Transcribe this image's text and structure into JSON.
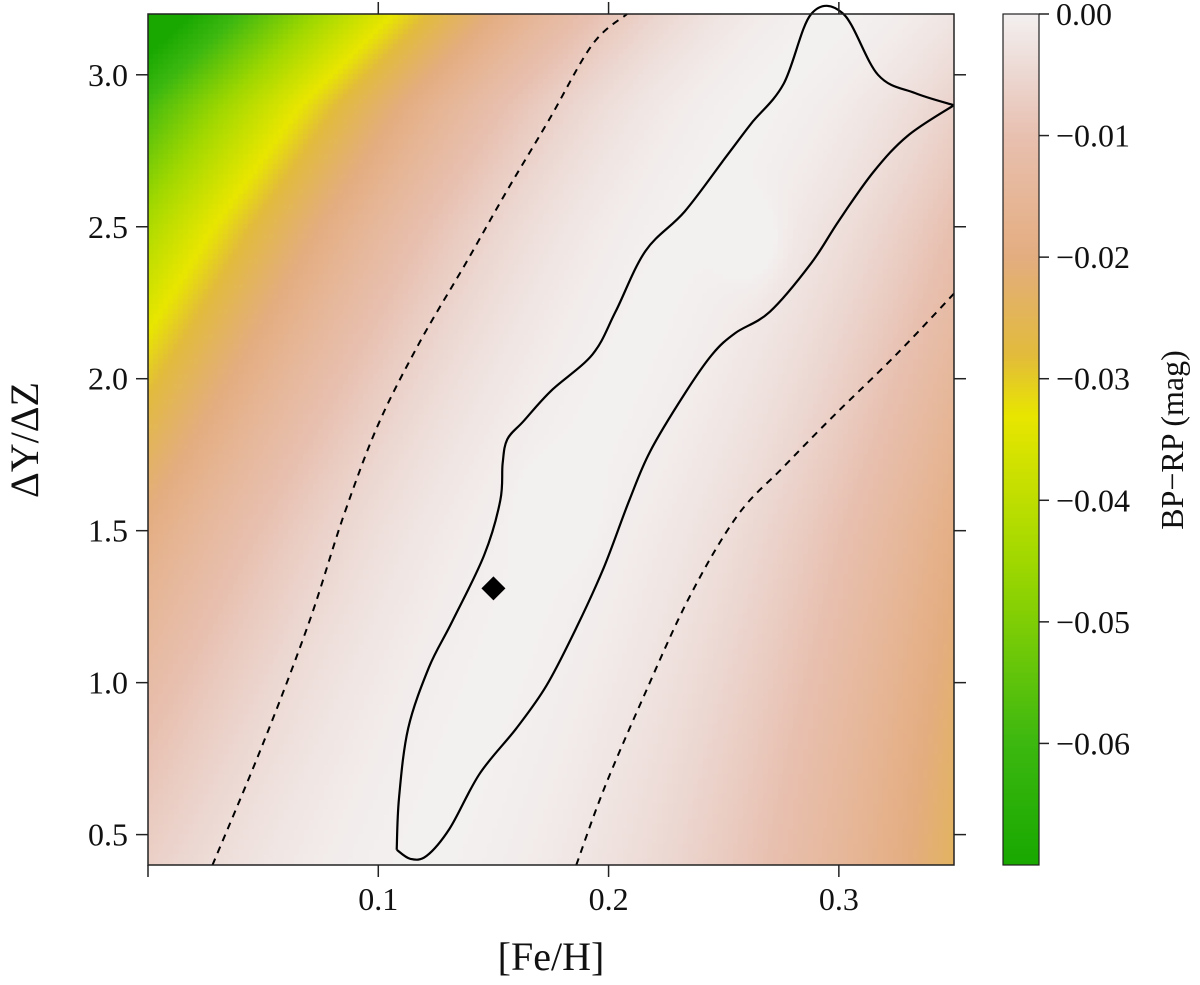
{
  "chart_data": {
    "type": "heatmap",
    "title": "",
    "xlabel": "[Fe/H]",
    "ylabel": "ΔY/ΔZ",
    "xlim": [
      0.0,
      0.35
    ],
    "ylim": [
      0.4,
      3.2
    ],
    "x_ticks": [
      0.1,
      0.2,
      0.3
    ],
    "x_tick_labels": [
      "0.1",
      "0.2",
      "0.3"
    ],
    "y_ticks": [
      0.5,
      1.0,
      1.5,
      2.0,
      2.5,
      3.0
    ],
    "y_tick_labels": [
      "0.5",
      "1.0",
      "1.5",
      "2.0",
      "2.5",
      "3.0"
    ],
    "colorbar": {
      "label": "BP−RP (mag)",
      "range": [
        -0.07,
        0.0
      ],
      "ticks": [
        0.0,
        -0.01,
        -0.02,
        -0.03,
        -0.04,
        -0.05,
        -0.06
      ],
      "tick_labels": [
        "0.00",
        "−0.01",
        "−0.02",
        "−0.03",
        "−0.04",
        "−0.05",
        "−0.06"
      ],
      "colors": {
        "at_0.000": "#f3f0f0",
        "at_-0.005": "#ecd7d1",
        "at_-0.010": "#e8c0b0",
        "at_-0.020": "#e4ad80",
        "at_-0.028": "#e2bb3c",
        "at_-0.033": "#e8e600",
        "at_-0.045": "#a0d800",
        "at_-0.060": "#3cb810",
        "at_-0.070": "#18a800"
      }
    },
    "ridge_center_curve": {
      "x": [
        0.125,
        0.15,
        0.175,
        0.205,
        0.235,
        0.265,
        0.3
      ],
      "y": [
        0.5,
        1.0,
        1.5,
        2.0,
        2.5,
        2.9,
        3.2
      ]
    },
    "contours": [
      {
        "style": "solid",
        "x": [
          0.108,
          0.109,
          0.113,
          0.122,
          0.132,
          0.146,
          0.153,
          0.154,
          0.156,
          0.163,
          0.175,
          0.193,
          0.203,
          0.216,
          0.233,
          0.251,
          0.262,
          0.276,
          0.288,
          0.302,
          0.317,
          0.333,
          0.35
        ],
        "y": [
          0.45,
          0.62,
          0.85,
          1.05,
          1.2,
          1.42,
          1.6,
          1.72,
          1.8,
          1.86,
          1.96,
          2.08,
          2.22,
          2.42,
          2.55,
          2.73,
          2.84,
          2.97,
          3.2,
          3.2,
          3.0,
          2.94,
          2.9
        ]
      },
      {
        "style": "solid",
        "x": [
          0.35,
          0.33,
          0.315,
          0.3,
          0.288,
          0.27,
          0.255,
          0.245,
          0.233,
          0.218,
          0.209,
          0.198,
          0.186,
          0.173,
          0.16,
          0.144,
          0.131,
          0.121,
          0.114,
          0.108
        ],
        "y": [
          2.9,
          2.8,
          2.68,
          2.52,
          2.38,
          2.22,
          2.15,
          2.08,
          1.95,
          1.76,
          1.6,
          1.38,
          1.18,
          0.99,
          0.85,
          0.7,
          0.52,
          0.43,
          0.42,
          0.45
        ]
      },
      {
        "style": "dashed",
        "x": [
          0.028,
          0.05,
          0.07,
          0.085,
          0.1,
          0.118,
          0.138,
          0.156,
          0.174,
          0.193,
          0.208
        ],
        "y": [
          0.4,
          0.8,
          1.2,
          1.55,
          1.85,
          2.12,
          2.38,
          2.62,
          2.85,
          3.1,
          3.2
        ]
      },
      {
        "style": "dashed",
        "x": [
          0.186,
          0.198,
          0.215,
          0.235,
          0.256,
          0.276,
          0.298,
          0.325,
          0.35
        ],
        "y": [
          0.4,
          0.65,
          0.95,
          1.28,
          1.55,
          1.71,
          1.88,
          2.08,
          2.28
        ]
      }
    ],
    "marker": {
      "shape": "diamond",
      "x": 0.15,
      "y": 1.31,
      "color": "#000000"
    },
    "local_maxima": [
      {
        "x": 0.177,
        "y": 1.57
      },
      {
        "x": 0.262,
        "y": 2.45
      }
    ]
  }
}
